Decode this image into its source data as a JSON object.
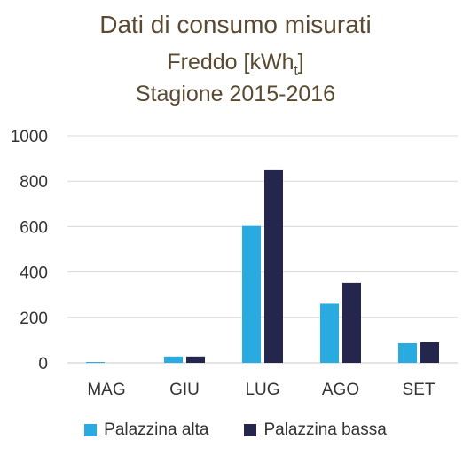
{
  "chart_data": {
    "type": "bar",
    "title": "Dati di consumo misurati",
    "subtitle_main": "Freddo [kWh",
    "subtitle_sub": "t",
    "subtitle_end": "]",
    "subtitle2": "Stagione 2015-2016",
    "xlabel": "",
    "ylabel": "",
    "categories": [
      "MAG",
      "GIU",
      "LUG",
      "AGO",
      "SET"
    ],
    "series": [
      {
        "name": "Palazzina alta",
        "color": "#29abe2",
        "values": [
          4,
          28,
          603,
          260,
          86
        ]
      },
      {
        "name": "Palazzina bassa",
        "color": "#24264d",
        "values": [
          0,
          28,
          848,
          352,
          90
        ]
      }
    ],
    "ylim": [
      0,
      1000
    ],
    "yticks": [
      0,
      200,
      400,
      600,
      800,
      1000
    ],
    "grid": true,
    "legend_position": "bottom"
  }
}
